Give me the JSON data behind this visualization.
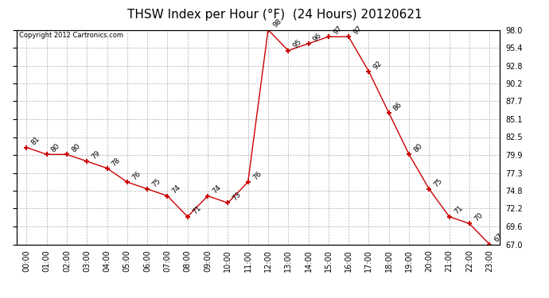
{
  "title": "THSW Index per Hour (°F)  (24 Hours) 20120621",
  "copyright_text": "Copyright 2012 Cartronics.com",
  "hours": [
    0,
    1,
    2,
    3,
    4,
    5,
    6,
    7,
    8,
    9,
    10,
    11,
    12,
    13,
    14,
    15,
    16,
    17,
    18,
    19,
    20,
    21,
    22,
    23
  ],
  "values": [
    81,
    80,
    80,
    79,
    78,
    76,
    75,
    74,
    71,
    74,
    73,
    76,
    98,
    95,
    96,
    97,
    97,
    92,
    86,
    80,
    75,
    71,
    70,
    67
  ],
  "x_labels": [
    "00:00",
    "01:00",
    "02:00",
    "03:00",
    "04:00",
    "05:00",
    "06:00",
    "07:00",
    "08:00",
    "09:00",
    "10:00",
    "11:00",
    "12:00",
    "13:00",
    "14:00",
    "15:00",
    "16:00",
    "17:00",
    "18:00",
    "19:00",
    "20:00",
    "21:00",
    "22:00",
    "23:00"
  ],
  "y_ticks": [
    67.0,
    69.6,
    72.2,
    74.8,
    77.3,
    79.9,
    82.5,
    85.1,
    87.7,
    90.2,
    92.8,
    95.4,
    98.0
  ],
  "ylim": [
    67.0,
    98.0
  ],
  "line_color": "#cc0000",
  "marker_color": "#cc0000",
  "bg_color": "#ffffff",
  "grid_color": "#b0b0b0",
  "title_fontsize": 11,
  "label_fontsize": 7,
  "annotation_fontsize": 6.5,
  "copyright_fontsize": 6
}
